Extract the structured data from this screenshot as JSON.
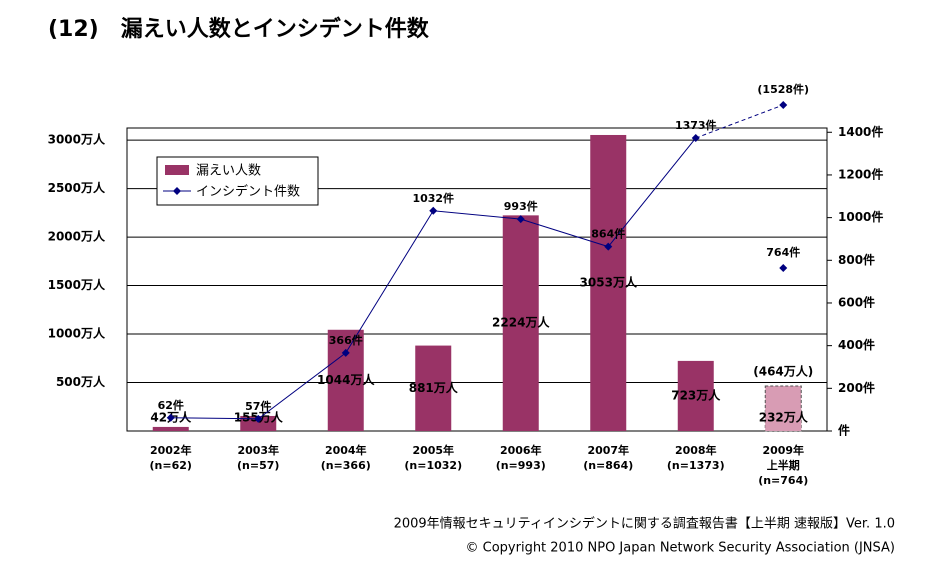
{
  "chart_data": {
    "type": "bar-line",
    "title": "(12)　漏えい人数とインシデント件数",
    "categories": [
      [
        "2002年",
        "(n=62)"
      ],
      [
        "2003年",
        "(n=57)"
      ],
      [
        "2004年",
        "(n=366)"
      ],
      [
        "2005年",
        "(n=1032)"
      ],
      [
        "2006年",
        "(n=993)"
      ],
      [
        "2007年",
        "(n=864)"
      ],
      [
        "2008年",
        "(n=1373)"
      ],
      [
        "2009年",
        "上半期",
        "(n=764)"
      ]
    ],
    "ylim": [
      0,
      3125
    ],
    "yticks": [
      {
        "value": 500,
        "label": "500万人"
      },
      {
        "value": 1000,
        "label": "1000万人"
      },
      {
        "value": 1500,
        "label": "1500万人"
      },
      {
        "value": 2000,
        "label": "2000万人"
      },
      {
        "value": 2500,
        "label": "2500万人"
      },
      {
        "value": 3000,
        "label": "3000万人"
      }
    ],
    "y2lim": [
      0,
      1420
    ],
    "y2ticks": [
      {
        "value": 0,
        "label": "件"
      },
      {
        "value": 200,
        "label": "200件"
      },
      {
        "value": 400,
        "label": "400件"
      },
      {
        "value": 600,
        "label": "600件"
      },
      {
        "value": 800,
        "label": "800件"
      },
      {
        "value": 1000,
        "label": "1000件"
      },
      {
        "value": 1200,
        "label": "1200件"
      },
      {
        "value": 1400,
        "label": "1400件"
      }
    ],
    "grid": true,
    "series": [
      {
        "name": "漏えい人数",
        "type": "bar",
        "color": "#993366",
        "colors": [
          "#993366",
          "#993366",
          "#993366",
          "#993366",
          "#993366",
          "#993366",
          "#993366",
          "#d89cb4"
        ],
        "values": [
          42,
          155,
          1044,
          881,
          2224,
          3053,
          723,
          232
        ],
        "value_labels": [
          "42万人",
          "155万人",
          "1044万人",
          "881万人",
          "2224万人",
          "3053万人",
          "723万人",
          "232万人"
        ]
      },
      {
        "name": "インシデント件数",
        "type": "line",
        "axis": "y2",
        "color": "#000080",
        "values": [
          62,
          57,
          366,
          1032,
          993,
          864,
          1373,
          null
        ],
        "value_labels": [
          "62件",
          "57件",
          "366件",
          "1032件",
          "993件",
          "864件",
          "1373件",
          null
        ]
      }
    ],
    "half_year_point": {
      "value": 764,
      "label": "764件"
    },
    "projected_people": {
      "value": 464,
      "label": "(464万人)"
    },
    "projected_incidents": {
      "value": 1528,
      "label": "(1528件)"
    },
    "footer": [
      "2009年情報セキュリティインシデントに関する調査報告書【上半期 速報版】Ver. 1.0",
      "© Copyright 2010 NPO Japan Network Security Association (JNSA)"
    ]
  }
}
